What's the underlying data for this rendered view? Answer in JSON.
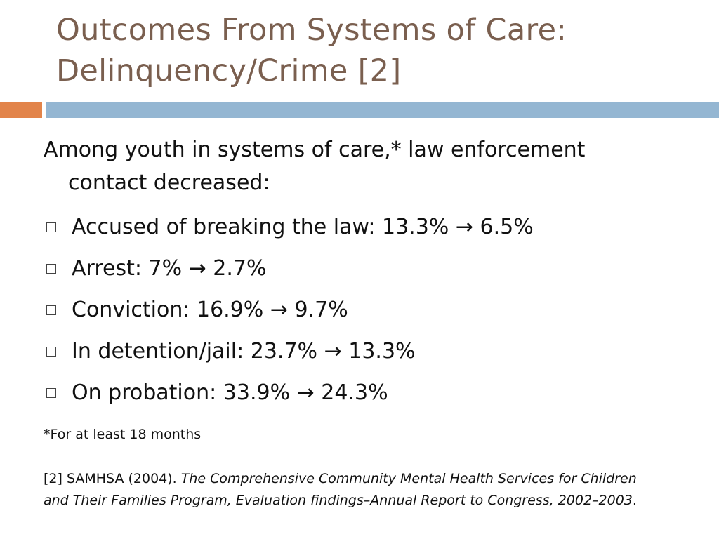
{
  "title": {
    "line1": "Outcomes From Systems of Care:",
    "line2": "Delinquency/Crime [2]"
  },
  "colors": {
    "title": "#7a5f4f",
    "accent_orange": "#e2844a",
    "accent_blue": "#94b6d2"
  },
  "intro": {
    "line1": "Among youth in systems of care,* law enforcement",
    "line2": "contact decreased:"
  },
  "bullet_icon": "hollow-square-bullet-icon",
  "bullets": [
    "Accused of breaking the law: 13.3% → 6.5%",
    "Arrest: 7% → 2.7%",
    "Conviction: 16.9% → 9.7%",
    "In detention/jail: 23.7% → 13.3%",
    "On probation: 33.9% → 24.3%"
  ],
  "footnote": "*For at least 18 months",
  "citation": {
    "prefix": "[2] SAMHSA (2004). ",
    "title_line1": "The Comprehensive Community Mental Health Services for Children",
    "title_line2": "and Their Families Program, Evaluation findings–Annual Report to Congress, 2002–2003",
    "suffix": "."
  }
}
